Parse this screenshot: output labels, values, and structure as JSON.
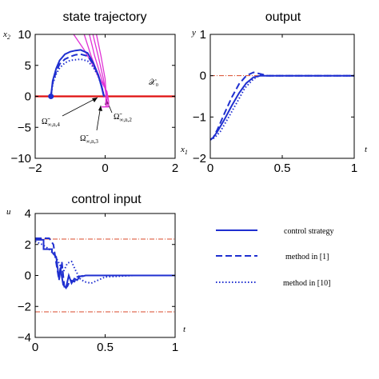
{
  "chart_data": [
    {
      "id": "state",
      "type": "line",
      "title": "state trajectory",
      "xlabel": "x₁",
      "ylabel": "x₂",
      "xlim": [
        -2,
        2
      ],
      "ylim": [
        -10,
        10
      ],
      "xticks": [
        "−2",
        "0",
        "2"
      ],
      "yticks": [
        "−10",
        "−5",
        "0",
        "5",
        "10"
      ],
      "x_axis_symbol": "x",
      "x_axis_sub": "1",
      "y_axis_symbol": "x",
      "y_axis_sub": "2",
      "region_label": "𝒳₀",
      "set_labels": [
        {
          "main": "Ω̃",
          "sub": "∞,n,4"
        },
        {
          "main": "Ω̃",
          "sub": "∞,n,2"
        },
        {
          "main": "Ω̃",
          "sub": "∞,n,3"
        }
      ],
      "initial_point": [
        -1.55,
        0
      ],
      "constraint_line_y": 0,
      "series": [
        {
          "style": "solid",
          "x": [
            -1.55,
            -1.5,
            -1.4,
            -1.3,
            -1.15,
            -1.0,
            -0.85,
            -0.7,
            -0.5,
            -0.35,
            -0.2,
            -0.1,
            -0.05,
            -0.03
          ],
          "y": [
            0,
            2.5,
            4.5,
            5.8,
            6.8,
            7.2,
            7.4,
            7.5,
            7.0,
            5.5,
            3.5,
            1.5,
            0.3,
            0
          ]
        },
        {
          "style": "dashed",
          "x": [
            -1.55,
            -1.5,
            -1.4,
            -1.3,
            -1.15,
            -1.0,
            -0.85,
            -0.7,
            -0.5,
            -0.35,
            -0.2,
            -0.1,
            -0.05,
            -0.03
          ],
          "y": [
            0,
            2.2,
            4.0,
            5.2,
            6.0,
            6.4,
            6.7,
            6.8,
            6.5,
            5.3,
            3.5,
            1.6,
            0.4,
            0
          ]
        },
        {
          "style": "dotted",
          "x": [
            -1.55,
            -1.5,
            -1.4,
            -1.3,
            -1.15,
            -1.0,
            -0.85,
            -0.7,
            -0.5,
            -0.35,
            -0.2,
            -0.1,
            -0.05,
            -0.03
          ],
          "y": [
            0,
            2.0,
            3.6,
            4.6,
            5.4,
            5.8,
            5.9,
            6.0,
            5.7,
            4.8,
            3.3,
            1.6,
            0.5,
            0
          ]
        }
      ],
      "boundaries": [
        {
          "x": [
            -0.6,
            -0.4,
            -0.15,
            0.05,
            0.1,
            0.1,
            -0.1
          ],
          "y": [
            10,
            6.5,
            2.8,
            0.8,
            -0.8,
            -1.7,
            -1.7
          ]
        },
        {
          "x": [
            -0.45,
            -0.3,
            -0.1,
            0.05,
            0.06
          ],
          "y": [
            10,
            6.5,
            2.8,
            0.5,
            -1.7
          ]
        },
        {
          "x": [
            -0.35,
            -0.2,
            -0.05,
            0.02,
            0.02
          ],
          "y": [
            10,
            6.5,
            2.8,
            0.5,
            -1.6
          ]
        },
        {
          "x": [
            -0.25,
            -0.12,
            0.0,
            0.03
          ],
          "y": [
            10,
            6.5,
            2.8,
            0.2
          ]
        },
        {
          "x": [
            -0.9,
            -0.6,
            -0.3,
            -0.1,
            -0.03,
            -0.05
          ],
          "y": [
            10,
            7.5,
            4.5,
            1.8,
            0.2,
            -0.2
          ]
        }
      ]
    },
    {
      "id": "output",
      "type": "line",
      "title": "output",
      "xlabel": "t",
      "ylabel": "y",
      "xlim": [
        0,
        1
      ],
      "ylim": [
        -2,
        1
      ],
      "xticks": [
        "0",
        "0.5",
        "1"
      ],
      "yticks": [
        "−2",
        "−1",
        "0",
        "1"
      ],
      "reference_y": 0,
      "series": [
        {
          "style": "solid",
          "x": [
            0,
            0.02,
            0.05,
            0.1,
            0.15,
            0.2,
            0.25,
            0.3,
            0.35,
            0.38,
            0.42,
            0.5,
            0.7,
            1.0
          ],
          "y": [
            -1.55,
            -1.5,
            -1.35,
            -1.05,
            -0.72,
            -0.42,
            -0.18,
            -0.04,
            0.0,
            0.0,
            0.0,
            0.0,
            0.0,
            0.0
          ]
        },
        {
          "style": "dashed",
          "x": [
            0,
            0.02,
            0.05,
            0.1,
            0.15,
            0.2,
            0.25,
            0.3,
            0.34,
            0.4,
            0.5,
            1.0
          ],
          "y": [
            -1.55,
            -1.5,
            -1.3,
            -0.9,
            -0.52,
            -0.2,
            0.0,
            0.08,
            0.05,
            0.0,
            0.0,
            0.0
          ]
        },
        {
          "style": "dotted",
          "x": [
            0,
            0.03,
            0.07,
            0.12,
            0.18,
            0.24,
            0.3,
            0.35,
            0.38,
            0.45,
            1.0
          ],
          "y": [
            -1.55,
            -1.5,
            -1.35,
            -1.05,
            -0.68,
            -0.3,
            -0.08,
            0.02,
            0.0,
            0.0,
            0.0
          ]
        }
      ]
    },
    {
      "id": "control",
      "type": "line",
      "title": "control input",
      "xlabel": "t",
      "ylabel": "u",
      "xlim": [
        0,
        1
      ],
      "ylim": [
        -4,
        4
      ],
      "xticks": [
        "0",
        "0.5",
        "1"
      ],
      "yticks": [
        "−4",
        "−2",
        "0",
        "2",
        "4"
      ],
      "bounds_y": [
        2.35,
        -2.35
      ],
      "series": [
        {
          "style": "solid",
          "x": [
            0,
            0.06,
            0.06,
            0.12,
            0.12,
            0.15,
            0.17,
            0.18,
            0.2,
            0.22,
            0.24,
            0.26,
            0.28,
            0.3,
            0.32,
            0.34,
            0.36,
            0.4,
            0.5,
            0.7,
            1.0
          ],
          "y": [
            2.3,
            2.3,
            1.7,
            1.7,
            1.5,
            1.2,
            -0.2,
            0.5,
            -0.6,
            -0.8,
            0.0,
            -0.5,
            -0.2,
            -0.3,
            -0.05,
            -0.05,
            0.0,
            0.0,
            0.0,
            0.0,
            0.0
          ]
        },
        {
          "style": "dashed",
          "x": [
            0,
            0.05,
            0.1,
            0.13,
            0.15,
            0.17,
            0.19,
            0.21,
            0.23,
            0.25,
            0.28,
            0.3,
            0.35,
            0.4,
            1.0
          ],
          "y": [
            2.4,
            2.4,
            2.4,
            2.0,
            0.8,
            -0.3,
            0.9,
            -0.9,
            -0.7,
            -0.3,
            -0.4,
            -0.1,
            0.0,
            0.0,
            0.0
          ]
        },
        {
          "style": "dotted",
          "x": [
            0,
            0.05,
            0.1,
            0.14,
            0.17,
            0.2,
            0.23,
            0.26,
            0.29,
            0.32,
            0.35,
            0.4,
            0.45,
            0.5,
            0.7,
            1.0
          ],
          "y": [
            2.2,
            2.0,
            1.7,
            1.3,
            0.8,
            0.2,
            0.8,
            0.9,
            0.3,
            -0.2,
            -0.4,
            -0.5,
            -0.3,
            -0.1,
            0.0,
            0.0
          ]
        }
      ]
    }
  ],
  "legend": [
    {
      "label": "control strategy",
      "style": "solid"
    },
    {
      "label": "method in [1]",
      "style": "dashed"
    },
    {
      "label": "method in [10]",
      "style": "dotted"
    }
  ],
  "colors": {
    "trajectory": "#1f2fd0",
    "boundary": "#e032d6",
    "constraint": "#e01010",
    "bound_line": "#d94a2a",
    "axis": "#000000"
  }
}
